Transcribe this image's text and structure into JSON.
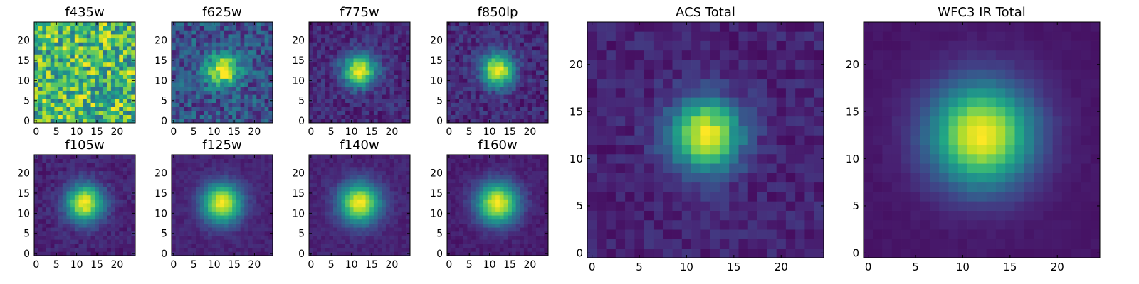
{
  "chart_data": [
    {
      "type": "heatmap",
      "title": "f435w",
      "profile": "noise",
      "grid": [
        25,
        25
      ],
      "xlim": [
        0,
        24
      ],
      "ylim": [
        0,
        24
      ],
      "xticks": [
        0,
        5,
        10,
        15,
        20
      ],
      "yticks": [
        0,
        5,
        10,
        15,
        20
      ],
      "colormap": "viridis",
      "center": [
        12,
        12.5
      ],
      "sigma": 0
    },
    {
      "type": "heatmap",
      "title": "f625w",
      "profile": "gaussian",
      "grid": [
        25,
        25
      ],
      "xlim": [
        0,
        24
      ],
      "ylim": [
        0,
        24
      ],
      "xticks": [
        0,
        5,
        10,
        15,
        20
      ],
      "yticks": [
        0,
        5,
        10,
        15,
        20
      ],
      "colormap": "viridis",
      "center": [
        12,
        12.5
      ],
      "sigma": 2.8,
      "noise": 0.18,
      "background": 0.25
    },
    {
      "type": "heatmap",
      "title": "f775w",
      "profile": "gaussian",
      "grid": [
        25,
        25
      ],
      "xlim": [
        0,
        24
      ],
      "ylim": [
        0,
        24
      ],
      "xticks": [
        0,
        5,
        10,
        15,
        20
      ],
      "yticks": [
        0,
        5,
        10,
        15,
        20
      ],
      "colormap": "viridis",
      "center": [
        12,
        12.5
      ],
      "sigma": 2.8,
      "noise": 0.09,
      "background": 0.12
    },
    {
      "type": "heatmap",
      "title": "f850lp",
      "profile": "gaussian",
      "grid": [
        25,
        25
      ],
      "xlim": [
        0,
        24
      ],
      "ylim": [
        0,
        24
      ],
      "xticks": [
        0,
        5,
        10,
        15,
        20
      ],
      "yticks": [
        0,
        5,
        10,
        15,
        20
      ],
      "colormap": "viridis",
      "center": [
        12,
        12.5
      ],
      "sigma": 2.8,
      "noise": 0.1,
      "background": 0.12
    },
    {
      "type": "heatmap",
      "title": "f105w",
      "profile": "gaussian",
      "grid": [
        25,
        25
      ],
      "xlim": [
        0,
        24
      ],
      "ylim": [
        0,
        24
      ],
      "xticks": [
        0,
        5,
        10,
        15,
        20
      ],
      "yticks": [
        0,
        5,
        10,
        15,
        20
      ],
      "colormap": "viridis",
      "center": [
        12,
        12.5
      ],
      "sigma": 3.2,
      "noise": 0.06,
      "background": 0.1
    },
    {
      "type": "heatmap",
      "title": "f125w",
      "profile": "gaussian",
      "grid": [
        25,
        25
      ],
      "xlim": [
        0,
        24
      ],
      "ylim": [
        0,
        24
      ],
      "xticks": [
        0,
        5,
        10,
        15,
        20
      ],
      "yticks": [
        0,
        5,
        10,
        15,
        20
      ],
      "colormap": "viridis",
      "center": [
        12,
        12.5
      ],
      "sigma": 3.4,
      "noise": 0.04,
      "background": 0.1
    },
    {
      "type": "heatmap",
      "title": "f140w",
      "profile": "gaussian",
      "grid": [
        25,
        25
      ],
      "xlim": [
        0,
        24
      ],
      "ylim": [
        0,
        24
      ],
      "xticks": [
        0,
        5,
        10,
        15,
        20
      ],
      "yticks": [
        0,
        5,
        10,
        15,
        20
      ],
      "colormap": "viridis",
      "center": [
        12,
        12.5
      ],
      "sigma": 3.5,
      "noise": 0.04,
      "background": 0.1
    },
    {
      "type": "heatmap",
      "title": "f160w",
      "profile": "gaussian",
      "grid": [
        25,
        25
      ],
      "xlim": [
        0,
        24
      ],
      "ylim": [
        0,
        24
      ],
      "xticks": [
        0,
        5,
        10,
        15,
        20
      ],
      "yticks": [
        0,
        5,
        10,
        15,
        20
      ],
      "colormap": "viridis",
      "center": [
        12,
        12.5
      ],
      "sigma": 3.6,
      "noise": 0.04,
      "background": 0.08
    },
    {
      "type": "heatmap",
      "title": "ACS Total",
      "profile": "gaussian",
      "grid": [
        25,
        25
      ],
      "xlim": [
        0,
        24
      ],
      "ylim": [
        0,
        24
      ],
      "xticks": [
        0,
        5,
        10,
        15,
        20
      ],
      "yticks": [
        0,
        5,
        10,
        15,
        20
      ],
      "colormap": "viridis",
      "center": [
        12,
        12.5
      ],
      "sigma": 2.6,
      "noise": 0.07,
      "background": 0.1
    },
    {
      "type": "heatmap",
      "title": "WFC3 IR Total",
      "profile": "gaussian",
      "grid": [
        25,
        25
      ],
      "xlim": [
        0,
        24
      ],
      "ylim": [
        0,
        24
      ],
      "xticks": [
        0,
        5,
        10,
        15,
        20
      ],
      "yticks": [
        0,
        5,
        10,
        15,
        20
      ],
      "colormap": "viridis",
      "center": [
        12,
        12.5
      ],
      "sigma": 3.8,
      "noise": 0.015,
      "background": 0.06
    }
  ]
}
